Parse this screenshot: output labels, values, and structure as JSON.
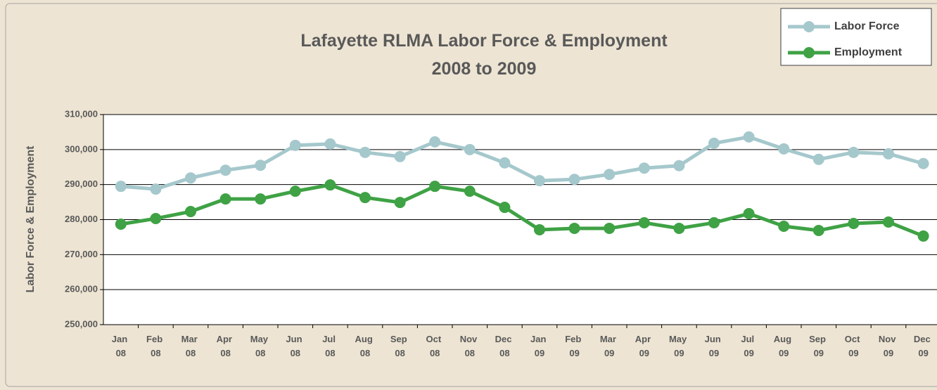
{
  "chart_data": {
    "type": "line",
    "title": "Lafayette RLMA Labor Force & Employment",
    "subtitle": "2008 to 2009",
    "y_label": "Labor Force & Employment",
    "categories": [
      "Jan 08",
      "Feb 08",
      "Mar 08",
      "Apr 08",
      "May 08",
      "Jun 08",
      "Jul 08",
      "Aug 08",
      "Sep 08",
      "Oct 08",
      "Nov 08",
      "Dec 08",
      "Jan 09",
      "Feb 09",
      "Mar 09",
      "Apr 09",
      "May 09",
      "Jun 09",
      "Jul 09",
      "Aug 09",
      "Sep 09",
      "Oct 09",
      "Nov 09",
      "Dec 09"
    ],
    "series": [
      {
        "name": "Labor Force",
        "color": "#a5c8cc",
        "values": [
          289500,
          288700,
          291900,
          294100,
          295500,
          301200,
          301600,
          299200,
          298000,
          302200,
          300000,
          296200,
          291100,
          291500,
          292900,
          294700,
          295400,
          301800,
          303600,
          300200,
          297200,
          299200,
          298800,
          296000
        ]
      },
      {
        "name": "Employment",
        "color": "#3fa245",
        "values": [
          278700,
          280300,
          282300,
          285900,
          285900,
          288100,
          289900,
          286300,
          284900,
          289500,
          288100,
          283500,
          277100,
          277500,
          277500,
          279100,
          277500,
          279100,
          281700,
          278100,
          276900,
          278900,
          279300,
          275300
        ]
      }
    ],
    "ylim": [
      250000,
      310000
    ],
    "yticks": [
      {
        "value": 250000,
        "label": "250,000"
      },
      {
        "value": 260000,
        "label": "260,000"
      },
      {
        "value": 270000,
        "label": "270,000"
      },
      {
        "value": 280000,
        "label": "280,000"
      },
      {
        "value": 290000,
        "label": "290,000"
      },
      {
        "value": 300000,
        "label": "300,000"
      },
      {
        "value": 310000,
        "label": "310,000"
      }
    ],
    "grid": true,
    "legend": "top-right"
  }
}
